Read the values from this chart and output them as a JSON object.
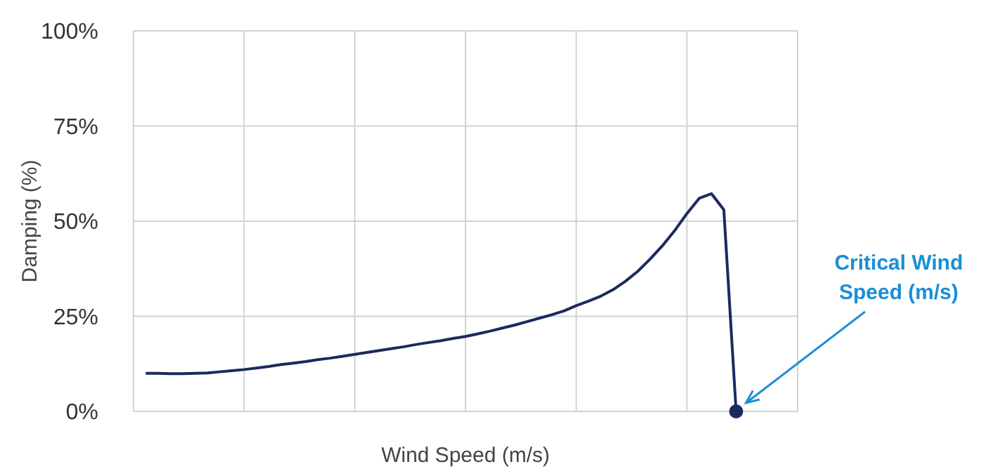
{
  "chart_data": {
    "type": "line",
    "xlabel": "Wind Speed (m/s)",
    "ylabel": "Damping (%)",
    "categories": [
      null,
      null,
      null,
      null,
      null,
      null,
      null,
      null,
      null,
      null,
      null,
      null,
      null,
      null,
      null,
      null,
      null,
      null,
      null,
      null,
      null,
      null,
      null,
      null,
      null,
      null,
      null,
      null,
      null,
      null,
      null,
      null,
      null,
      null,
      null,
      null,
      null,
      null,
      null,
      null,
      null,
      null,
      null,
      null,
      null,
      null,
      null,
      null,
      null,
      null,
      null,
      null,
      null,
      null,
      null
    ],
    "ylim": [
      0,
      100
    ],
    "yticks": [
      {
        "value": 0,
        "label": "0%"
      },
      {
        "value": 25,
        "label": "25%"
      },
      {
        "value": 50,
        "label": "50%"
      },
      {
        "value": 75,
        "label": "75%"
      },
      {
        "value": 100,
        "label": "100%"
      }
    ],
    "grid": true,
    "tick_labels": "y",
    "series": [
      {
        "color": "#1b2a5e",
        "values": [
          null,
          10,
          10,
          9.9,
          9.9,
          10,
          10.1,
          10.4,
          10.7,
          11,
          11.4,
          11.8,
          12.3,
          12.7,
          13.1,
          13.6,
          14,
          14.5,
          15,
          15.5,
          16,
          16.5,
          17,
          17.6,
          18.1,
          18.6,
          19.2,
          19.7,
          20.4,
          21.1,
          21.9,
          22.7,
          23.6,
          24.5,
          25.4,
          26.4,
          27.8,
          29,
          30.3,
          32,
          34.2,
          36.8,
          40,
          43.5,
          47.5,
          52,
          56,
          57.2,
          53,
          0,
          null,
          null,
          null,
          null,
          null
        ]
      }
    ],
    "annotations": [
      "Critical Wind Speed (m/s)"
    ]
  }
}
